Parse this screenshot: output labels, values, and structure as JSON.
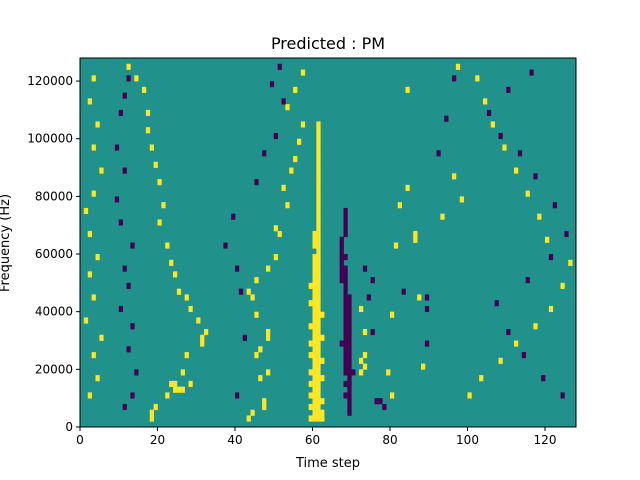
{
  "chart_data": {
    "type": "heatmap",
    "title": "Predicted : PM",
    "xlabel": "Time step",
    "ylabel": "Frequency (Hz)",
    "xlim": [
      0,
      128
    ],
    "ylim": [
      0,
      128000
    ],
    "xticks": [
      0,
      20,
      40,
      60,
      80,
      100,
      120
    ],
    "yticks": [
      0,
      20000,
      40000,
      60000,
      80000,
      100000,
      120000
    ],
    "ytick_labels": [
      "0",
      "20000",
      "40000",
      "60000",
      "80000",
      "100000",
      "120000"
    ],
    "grid": false,
    "legend": "none",
    "colormap": "viridis",
    "value_levels": [
      -1,
      0,
      1
    ],
    "colors": {
      "low": "#440154",
      "mid": "#21918c",
      "high": "#fde725"
    },
    "background_value": 0,
    "n_time_steps": 128,
    "n_freq_bins": 64,
    "note_cells_format": "[time_step, freq_bin_from_bottom, value]",
    "cells": [
      [
        59,
        1,
        1
      ],
      [
        60,
        1,
        1
      ],
      [
        61,
        1,
        1
      ],
      [
        62,
        1,
        1
      ],
      [
        60,
        2,
        1
      ],
      [
        61,
        2,
        1
      ],
      [
        62,
        2,
        1
      ],
      [
        59,
        3,
        1
      ],
      [
        60,
        3,
        1
      ],
      [
        61,
        3,
        1
      ],
      [
        60,
        4,
        1
      ],
      [
        61,
        4,
        1
      ],
      [
        62,
        4,
        1
      ],
      [
        59,
        5,
        1
      ],
      [
        60,
        5,
        1
      ],
      [
        61,
        5,
        1
      ],
      [
        60,
        6,
        1
      ],
      [
        61,
        6,
        1
      ],
      [
        59,
        7,
        1
      ],
      [
        60,
        7,
        1
      ],
      [
        61,
        7,
        1
      ],
      [
        60,
        8,
        1
      ],
      [
        61,
        8,
        1
      ],
      [
        62,
        8,
        1
      ],
      [
        59,
        9,
        1
      ],
      [
        60,
        9,
        1
      ],
      [
        61,
        9,
        1
      ],
      [
        60,
        10,
        1
      ],
      [
        61,
        10,
        1
      ],
      [
        60,
        11,
        1
      ],
      [
        61,
        11,
        1
      ],
      [
        62,
        11,
        1
      ],
      [
        59,
        12,
        1
      ],
      [
        60,
        12,
        1
      ],
      [
        61,
        12,
        1
      ],
      [
        60,
        13,
        1
      ],
      [
        61,
        13,
        1
      ],
      [
        59,
        14,
        1
      ],
      [
        60,
        14,
        1
      ],
      [
        61,
        14,
        1
      ],
      [
        60,
        15,
        1
      ],
      [
        61,
        15,
        1
      ],
      [
        62,
        15,
        1
      ],
      [
        60,
        16,
        1
      ],
      [
        61,
        16,
        1
      ],
      [
        59,
        17,
        1
      ],
      [
        60,
        17,
        1
      ],
      [
        61,
        17,
        1
      ],
      [
        60,
        18,
        1
      ],
      [
        61,
        18,
        1
      ],
      [
        60,
        19,
        1
      ],
      [
        61,
        19,
        1
      ],
      [
        62,
        19,
        1
      ],
      [
        60,
        20,
        1
      ],
      [
        61,
        20,
        1
      ],
      [
        59,
        21,
        1
      ],
      [
        60,
        21,
        1
      ],
      [
        61,
        21,
        1
      ],
      [
        60,
        22,
        1
      ],
      [
        61,
        22,
        1
      ],
      [
        60,
        23,
        1
      ],
      [
        61,
        23,
        1
      ],
      [
        59,
        24,
        1
      ],
      [
        60,
        24,
        1
      ],
      [
        61,
        24,
        1
      ],
      [
        60,
        25,
        1
      ],
      [
        61,
        25,
        1
      ],
      [
        60,
        26,
        1
      ],
      [
        61,
        26,
        1
      ],
      [
        60,
        27,
        1
      ],
      [
        61,
        27,
        1
      ],
      [
        60,
        28,
        1
      ],
      [
        61,
        28,
        1
      ],
      [
        60,
        29,
        1
      ],
      [
        61,
        29,
        1
      ],
      [
        61,
        30,
        1
      ],
      [
        60,
        31,
        1
      ],
      [
        61,
        31,
        1
      ],
      [
        60,
        32,
        1
      ],
      [
        61,
        32,
        1
      ],
      [
        60,
        33,
        1
      ],
      [
        61,
        33,
        1
      ],
      [
        61,
        34,
        1
      ],
      [
        61,
        35,
        1
      ],
      [
        61,
        36,
        1
      ],
      [
        61,
        37,
        1
      ],
      [
        61,
        38,
        1
      ],
      [
        61,
        39,
        1
      ],
      [
        61,
        40,
        1
      ],
      [
        61,
        41,
        1
      ],
      [
        61,
        42,
        1
      ],
      [
        61,
        43,
        1
      ],
      [
        61,
        44,
        1
      ],
      [
        61,
        45,
        1
      ],
      [
        61,
        46,
        1
      ],
      [
        61,
        47,
        1
      ],
      [
        61,
        48,
        1
      ],
      [
        61,
        49,
        1
      ],
      [
        61,
        50,
        1
      ],
      [
        61,
        51,
        1
      ],
      [
        61,
        52,
        1
      ],
      [
        69,
        2,
        -1
      ],
      [
        69,
        3,
        -1
      ],
      [
        69,
        4,
        -1
      ],
      [
        68,
        5,
        -1
      ],
      [
        69,
        5,
        -1
      ],
      [
        69,
        6,
        -1
      ],
      [
        68,
        7,
        -1
      ],
      [
        69,
        7,
        -1
      ],
      [
        69,
        8,
        -1
      ],
      [
        68,
        9,
        -1
      ],
      [
        69,
        9,
        -1
      ],
      [
        70,
        9,
        -1
      ],
      [
        68,
        10,
        -1
      ],
      [
        69,
        10,
        -1
      ],
      [
        68,
        11,
        -1
      ],
      [
        69,
        11,
        -1
      ],
      [
        68,
        12,
        -1
      ],
      [
        69,
        12,
        -1
      ],
      [
        68,
        13,
        -1
      ],
      [
        69,
        13,
        -1
      ],
      [
        67,
        14,
        -1
      ],
      [
        68,
        14,
        -1
      ],
      [
        69,
        14,
        -1
      ],
      [
        68,
        15,
        -1
      ],
      [
        69,
        15,
        -1
      ],
      [
        68,
        16,
        -1
      ],
      [
        69,
        16,
        -1
      ],
      [
        68,
        17,
        -1
      ],
      [
        69,
        17,
        -1
      ],
      [
        68,
        18,
        -1
      ],
      [
        69,
        18,
        -1
      ],
      [
        68,
        19,
        -1
      ],
      [
        69,
        19,
        -1
      ],
      [
        68,
        20,
        -1
      ],
      [
        69,
        20,
        -1
      ],
      [
        68,
        21,
        -1
      ],
      [
        69,
        21,
        -1
      ],
      [
        68,
        22,
        -1
      ],
      [
        69,
        22,
        -1
      ],
      [
        68,
        23,
        -1
      ],
      [
        68,
        24,
        -1
      ],
      [
        67,
        25,
        -1
      ],
      [
        68,
        25,
        -1
      ],
      [
        67,
        26,
        -1
      ],
      [
        68,
        26,
        -1
      ],
      [
        67,
        27,
        -1
      ],
      [
        68,
        27,
        -1
      ],
      [
        67,
        28,
        -1
      ],
      [
        67,
        29,
        -1
      ],
      [
        68,
        29,
        -1
      ],
      [
        67,
        30,
        -1
      ],
      [
        67,
        31,
        -1
      ],
      [
        67,
        32,
        -1
      ],
      [
        68,
        33,
        -1
      ],
      [
        68,
        34,
        -1
      ],
      [
        68,
        35,
        -1
      ],
      [
        68,
        36,
        -1
      ],
      [
        68,
        37,
        -1
      ],
      [
        72,
        9,
        1
      ],
      [
        73,
        10,
        1
      ],
      [
        72,
        11,
        1
      ],
      [
        73,
        12,
        1
      ],
      [
        73,
        16,
        1
      ],
      [
        72,
        20,
        1
      ],
      [
        76,
        4,
        -1
      ],
      [
        77,
        4,
        -1
      ],
      [
        75,
        16,
        -1
      ],
      [
        74,
        22,
        -1
      ],
      [
        75,
        25,
        -1
      ],
      [
        73,
        27,
        -1
      ],
      [
        78,
        3,
        -1
      ],
      [
        80,
        5,
        1
      ],
      [
        79,
        9,
        1
      ],
      [
        80,
        19,
        1
      ],
      [
        81,
        31,
        1
      ],
      [
        82,
        38,
        1
      ],
      [
        84,
        41,
        1
      ],
      [
        84,
        58,
        1
      ],
      [
        83,
        23,
        -1
      ],
      [
        86,
        32,
        1
      ],
      [
        86,
        33,
        1
      ],
      [
        87,
        22,
        1
      ],
      [
        88,
        10,
        1
      ],
      [
        89,
        14,
        -1
      ],
      [
        89,
        20,
        -1
      ],
      [
        89,
        22,
        -1
      ],
      [
        43,
        1,
        1
      ],
      [
        44,
        2,
        1
      ],
      [
        47,
        3,
        1
      ],
      [
        47,
        4,
        1
      ],
      [
        46,
        8,
        1
      ],
      [
        48,
        9,
        1
      ],
      [
        45,
        12,
        1
      ],
      [
        46,
        13,
        1
      ],
      [
        48,
        15,
        1
      ],
      [
        48,
        16,
        1
      ],
      [
        45,
        19,
        1
      ],
      [
        44,
        22,
        1
      ],
      [
        43,
        23,
        1
      ],
      [
        45,
        25,
        1
      ],
      [
        48,
        27,
        1
      ],
      [
        50,
        29,
        1
      ],
      [
        51,
        33,
        1
      ],
      [
        50,
        34,
        1
      ],
      [
        53,
        38,
        1
      ],
      [
        52,
        41,
        1
      ],
      [
        54,
        44,
        1
      ],
      [
        55,
        46,
        1
      ],
      [
        56,
        49,
        1
      ],
      [
        57,
        52,
        1
      ],
      [
        53,
        55,
        1
      ],
      [
        55,
        58,
        1
      ],
      [
        57,
        61,
        1
      ],
      [
        40,
        5,
        -1
      ],
      [
        42,
        15,
        -1
      ],
      [
        41,
        23,
        -1
      ],
      [
        40,
        27,
        -1
      ],
      [
        37,
        31,
        -1
      ],
      [
        39,
        36,
        -1
      ],
      [
        45,
        42,
        -1
      ],
      [
        47,
        47,
        -1
      ],
      [
        50,
        50,
        -1
      ],
      [
        52,
        56,
        -1
      ],
      [
        49,
        59,
        -1
      ],
      [
        51,
        62,
        -1
      ],
      [
        18,
        1,
        1
      ],
      [
        18,
        2,
        1
      ],
      [
        19,
        3,
        1
      ],
      [
        22,
        5,
        1
      ],
      [
        24,
        6,
        1
      ],
      [
        25,
        6,
        1
      ],
      [
        26,
        6,
        1
      ],
      [
        23,
        7,
        1
      ],
      [
        24,
        7,
        1
      ],
      [
        28,
        7,
        1
      ],
      [
        26,
        9,
        1
      ],
      [
        27,
        12,
        1
      ],
      [
        31,
        14,
        1
      ],
      [
        31,
        15,
        1
      ],
      [
        32,
        16,
        1
      ],
      [
        30,
        18,
        1
      ],
      [
        28,
        20,
        1
      ],
      [
        27,
        22,
        1
      ],
      [
        25,
        23,
        1
      ],
      [
        24,
        26,
        1
      ],
      [
        23,
        28,
        1
      ],
      [
        22,
        31,
        1
      ],
      [
        20,
        35,
        1
      ],
      [
        21,
        38,
        1
      ],
      [
        20,
        42,
        1
      ],
      [
        19,
        45,
        1
      ],
      [
        18,
        48,
        1
      ],
      [
        17,
        51,
        1
      ],
      [
        17,
        54,
        1
      ],
      [
        16,
        58,
        1
      ],
      [
        14,
        60,
        1
      ],
      [
        12,
        62,
        1
      ],
      [
        11,
        3,
        -1
      ],
      [
        13,
        5,
        -1
      ],
      [
        14,
        9,
        -1
      ],
      [
        12,
        13,
        -1
      ],
      [
        13,
        17,
        -1
      ],
      [
        10,
        20,
        -1
      ],
      [
        12,
        24,
        -1
      ],
      [
        11,
        27,
        -1
      ],
      [
        13,
        31,
        -1
      ],
      [
        10,
        35,
        -1
      ],
      [
        9,
        39,
        -1
      ],
      [
        11,
        44,
        -1
      ],
      [
        9,
        48,
        -1
      ],
      [
        10,
        54,
        -1
      ],
      [
        11,
        57,
        -1
      ],
      [
        12,
        60,
        -1
      ],
      [
        2,
        5,
        1
      ],
      [
        4,
        8,
        1
      ],
      [
        3,
        12,
        1
      ],
      [
        5,
        15,
        1
      ],
      [
        1,
        18,
        1
      ],
      [
        3,
        22,
        1
      ],
      [
        2,
        26,
        1
      ],
      [
        4,
        29,
        1
      ],
      [
        2,
        33,
        1
      ],
      [
        1,
        37,
        1
      ],
      [
        3,
        40,
        1
      ],
      [
        5,
        44,
        1
      ],
      [
        3,
        48,
        1
      ],
      [
        4,
        52,
        1
      ],
      [
        2,
        56,
        1
      ],
      [
        3,
        60,
        1
      ],
      [
        100,
        5,
        1
      ],
      [
        103,
        8,
        1
      ],
      [
        108,
        11,
        1
      ],
      [
        112,
        14,
        1
      ],
      [
        117,
        17,
        1
      ],
      [
        121,
        20,
        1
      ],
      [
        124,
        24,
        1
      ],
      [
        126,
        28,
        1
      ],
      [
        120,
        32,
        1
      ],
      [
        118,
        36,
        1
      ],
      [
        115,
        40,
        1
      ],
      [
        112,
        44,
        1
      ],
      [
        109,
        48,
        1
      ],
      [
        106,
        52,
        1
      ],
      [
        104,
        56,
        1
      ],
      [
        102,
        60,
        1
      ],
      [
        97,
        62,
        1
      ],
      [
        124,
        5,
        -1
      ],
      [
        119,
        8,
        -1
      ],
      [
        114,
        12,
        -1
      ],
      [
        110,
        16,
        -1
      ],
      [
        107,
        21,
        -1
      ],
      [
        115,
        25,
        -1
      ],
      [
        121,
        29,
        -1
      ],
      [
        125,
        33,
        -1
      ],
      [
        122,
        38,
        -1
      ],
      [
        117,
        43,
        -1
      ],
      [
        113,
        47,
        -1
      ],
      [
        108,
        50,
        -1
      ],
      [
        105,
        54,
        -1
      ],
      [
        110,
        58,
        -1
      ],
      [
        116,
        61,
        -1
      ],
      [
        92,
        47,
        -1
      ],
      [
        94,
        53,
        -1
      ],
      [
        96,
        60,
        -1
      ],
      [
        93,
        36,
        1
      ],
      [
        98,
        39,
        1
      ],
      [
        96,
        43,
        1
      ]
    ]
  }
}
